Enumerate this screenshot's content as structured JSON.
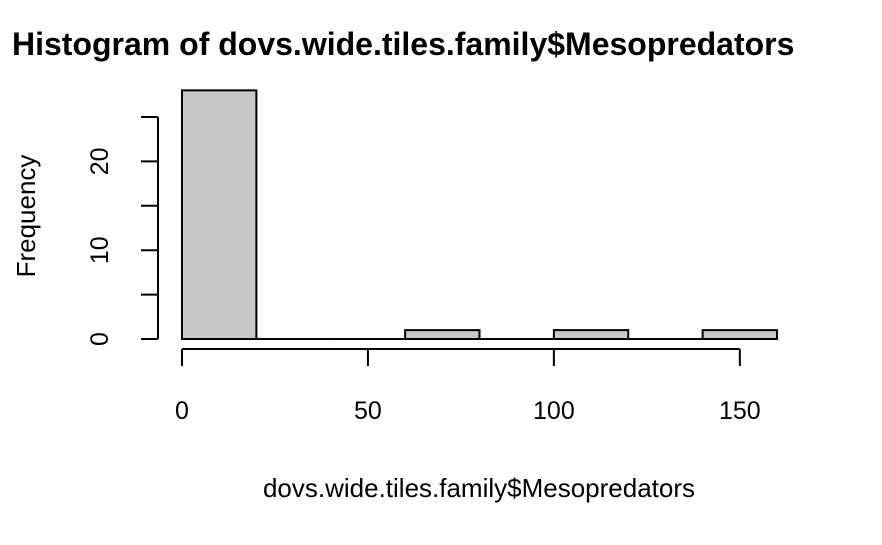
{
  "chart_data": {
    "type": "bar",
    "title": "Histogram of dovs.wide.tiles.family$Mesopredators",
    "xlabel": "dovs.wide.tiles.family$Mesopredators",
    "ylabel": "Frequency",
    "bins": [
      {
        "from": 0,
        "to": 20,
        "count": 28
      },
      {
        "from": 20,
        "to": 40,
        "count": 0
      },
      {
        "from": 40,
        "to": 60,
        "count": 0
      },
      {
        "from": 60,
        "to": 80,
        "count": 1
      },
      {
        "from": 80,
        "to": 100,
        "count": 0
      },
      {
        "from": 100,
        "to": 120,
        "count": 1
      },
      {
        "from": 120,
        "to": 140,
        "count": 0
      },
      {
        "from": 140,
        "to": 160,
        "count": 1
      }
    ],
    "x_ticks": [
      0,
      50,
      100,
      150
    ],
    "y_ticks": [
      0,
      10,
      20
    ],
    "y_ticks_unlabeled": [
      5,
      15,
      25
    ],
    "xlim": [
      0,
      160
    ],
    "ylim": [
      0,
      28
    ],
    "grid": false,
    "colors": {
      "bar_fill": "#c8c8c8",
      "bar_stroke": "#000000"
    }
  }
}
